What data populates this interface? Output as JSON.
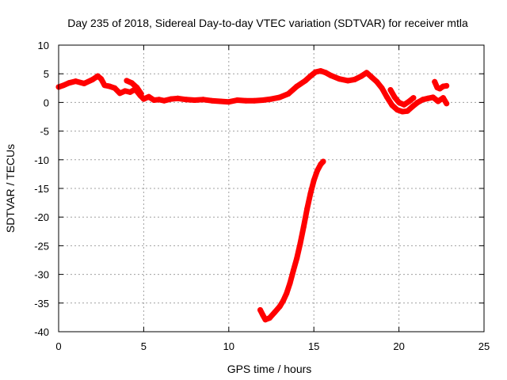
{
  "chart_data": {
    "type": "scatter",
    "title": "Day 235 of 2018, Sidereal Day-to-day VTEC variation (SDTVAR) for receiver mtla",
    "xlabel": "GPS time / hours",
    "ylabel": "SDTVAR / TECUs",
    "xlim": [
      0,
      25
    ],
    "ylim": [
      -40,
      10
    ],
    "xticks": [
      0,
      5,
      10,
      15,
      20,
      25
    ],
    "xtick_labels": [
      "0",
      "5",
      "10",
      "15",
      "20",
      "25"
    ],
    "yticks": [
      10,
      5,
      0,
      -5,
      -10,
      -15,
      -20,
      -25,
      -30,
      -35,
      -40
    ],
    "ytick_labels": [
      "10",
      "5",
      "0",
      "-5",
      "-10",
      "-15",
      "-20",
      "-25",
      "-30",
      "-35",
      "-40"
    ],
    "grid": true,
    "series": [
      {
        "name": "main-track",
        "color": "#ff0000",
        "x": [
          0.0,
          0.3,
          0.6,
          1.0,
          1.5,
          2.0,
          2.3,
          2.5,
          2.7,
          3.0,
          3.3,
          3.6,
          3.9,
          4.2,
          4.5,
          4.8,
          5.0,
          5.3,
          5.6,
          5.9,
          6.2,
          6.6,
          7.0,
          7.5,
          8.0,
          8.5,
          9.0,
          9.5,
          10.0,
          10.5,
          11.0,
          11.5,
          12.0,
          12.5,
          13.0,
          13.5,
          14.0,
          14.5,
          14.8,
          15.1,
          15.4,
          15.7,
          16.0,
          16.5,
          17.0,
          17.4,
          17.8,
          18.1,
          18.4,
          18.7,
          19.0,
          19.3,
          19.6,
          19.9,
          20.2,
          20.5,
          20.8,
          21.1,
          21.4,
          21.7,
          22.0,
          22.3,
          22.6,
          22.8
        ],
        "y": [
          2.7,
          3.0,
          3.4,
          3.7,
          3.3,
          4.0,
          4.6,
          4.1,
          3.0,
          2.8,
          2.5,
          1.6,
          2.0,
          1.8,
          2.3,
          1.2,
          0.6,
          1.0,
          0.4,
          0.5,
          0.3,
          0.6,
          0.7,
          0.5,
          0.4,
          0.5,
          0.3,
          0.2,
          0.1,
          0.4,
          0.3,
          0.3,
          0.4,
          0.6,
          0.9,
          1.5,
          2.8,
          3.8,
          4.6,
          5.3,
          5.5,
          5.2,
          4.7,
          4.1,
          3.8,
          4.0,
          4.6,
          5.2,
          4.4,
          3.6,
          2.5,
          0.9,
          -0.5,
          -1.3,
          -1.6,
          -1.5,
          -0.7,
          0.0,
          0.5,
          0.7,
          0.9,
          0.2,
          0.8,
          -0.2
        ]
      },
      {
        "name": "excursion-7",
        "color": "#ff0000",
        "x": [
          4.0,
          4.3,
          4.6,
          4.85
        ],
        "y": [
          3.8,
          3.4,
          2.6,
          1.5
        ]
      },
      {
        "name": "excursion-8",
        "color": "#ff0000",
        "x": [
          19.5,
          19.75,
          20.0,
          20.3,
          20.6,
          20.85
        ],
        "y": [
          2.2,
          0.9,
          0.0,
          -0.4,
          0.2,
          0.8
        ]
      },
      {
        "name": "excursion-9",
        "color": "#ff0000",
        "x": [
          22.1,
          22.25,
          22.4,
          22.6,
          22.8
        ],
        "y": [
          3.6,
          2.6,
          2.4,
          2.8,
          2.9
        ]
      },
      {
        "name": "drop-segment",
        "color": "#ff0000",
        "x": [
          11.85,
          12.0,
          12.15,
          12.4,
          12.7,
          13.0,
          13.2,
          13.4,
          13.6,
          13.8,
          14.0,
          14.2,
          14.4,
          14.6,
          14.8,
          15.0,
          15.2,
          15.4,
          15.55
        ],
        "y": [
          -36.2,
          -37.1,
          -37.9,
          -37.6,
          -36.6,
          -35.6,
          -34.6,
          -33.3,
          -31.5,
          -29.3,
          -27.2,
          -24.6,
          -21.7,
          -18.6,
          -15.9,
          -13.6,
          -11.9,
          -10.8,
          -10.3
        ]
      }
    ]
  }
}
